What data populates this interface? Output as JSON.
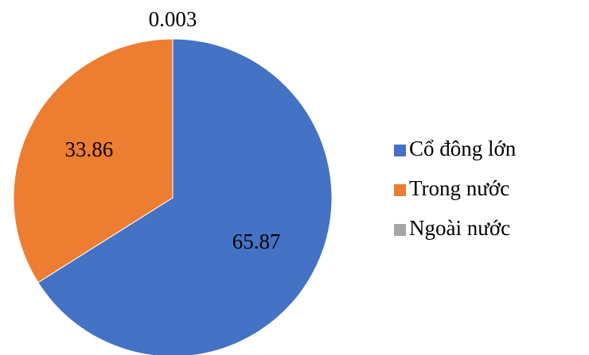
{
  "chart_data": {
    "type": "pie",
    "categories": [
      "Cổ đông lớn",
      "Trong nước",
      "Ngoài nước"
    ],
    "values": [
      65.87,
      33.86,
      0.003
    ],
    "colors": [
      "#4472c4",
      "#ed7d31",
      "#a5a5a5"
    ],
    "legend": "right"
  }
}
